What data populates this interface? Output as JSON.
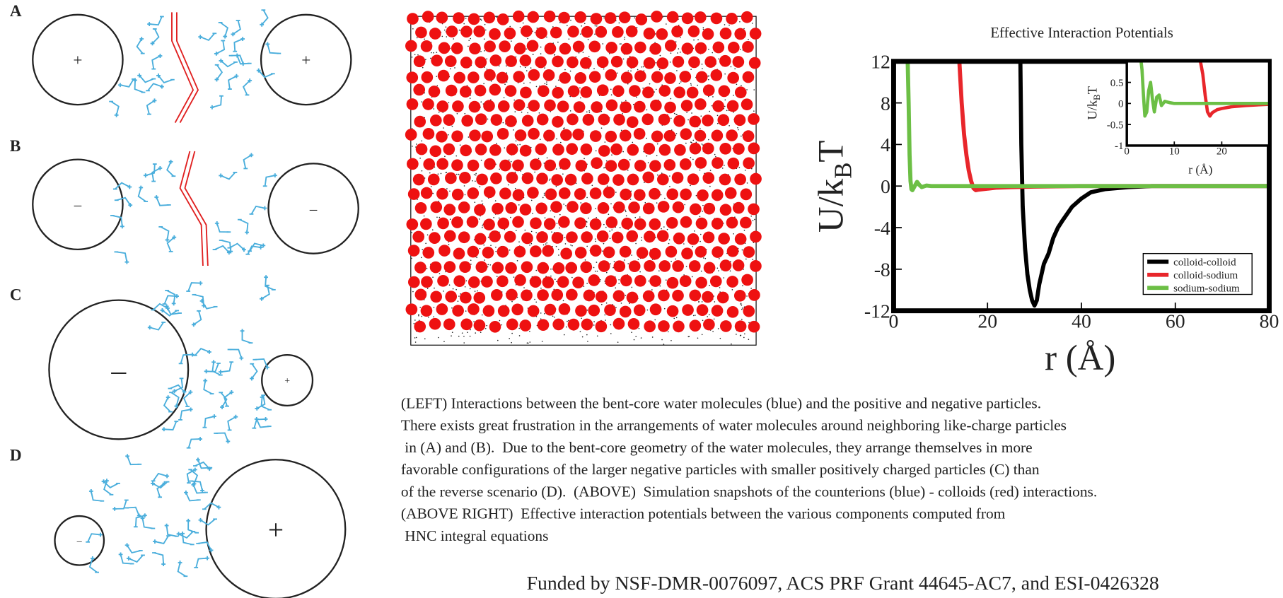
{
  "panels": [
    {
      "label": "A",
      "charges": [
        "+",
        "+"
      ]
    },
    {
      "label": "B",
      "charges": [
        "–",
        "–"
      ]
    },
    {
      "label": "C",
      "charges": [
        "–",
        "+"
      ]
    },
    {
      "label": "D",
      "charges": [
        "–",
        "+"
      ]
    }
  ],
  "chart_data": [
    {
      "type": "line",
      "title": "Effective Interaction Potentials",
      "x_label": "r (Å)",
      "y_label": [
        "U/k",
        "B",
        "T"
      ],
      "xlim": [
        0,
        80
      ],
      "ylim": [
        -12,
        12
      ],
      "xticks": [
        0,
        20,
        40,
        60,
        80
      ],
      "yticks": [
        -12,
        -8,
        -4,
        0,
        4,
        8,
        12
      ],
      "legend": "lower right",
      "series": [
        {
          "name": "colloid-colloid",
          "color": "#000000",
          "x": [
            27,
            27.2,
            27.5,
            28,
            28.5,
            29,
            29.5,
            30,
            30.5,
            31,
            32,
            33,
            34,
            35,
            36,
            38,
            40,
            42,
            45,
            50,
            55,
            60,
            70,
            80
          ],
          "values": [
            12,
            4,
            -2,
            -6,
            -8.5,
            -10,
            -11,
            -11.5,
            -11,
            -9.5,
            -7.5,
            -6.5,
            -5,
            -4,
            -3.3,
            -2,
            -1.2,
            -0.6,
            -0.3,
            -0.1,
            0,
            0,
            0,
            0
          ]
        },
        {
          "name": "colloid-sodium",
          "color": "#e8262b",
          "x": [
            14,
            14.5,
            15,
            15.5,
            16,
            16.5,
            17,
            17.5,
            18,
            19,
            20,
            22,
            25,
            30,
            40,
            60,
            80
          ],
          "values": [
            12,
            8,
            5,
            3,
            1.5,
            0.5,
            -0.2,
            -0.4,
            -0.35,
            -0.3,
            -0.25,
            -0.15,
            -0.1,
            -0.05,
            0,
            0,
            0
          ]
        },
        {
          "name": "sodium-sodium",
          "color": "#6cbf45",
          "x": [
            3,
            3.2,
            3.4,
            3.6,
            3.8,
            4,
            4.5,
            5,
            5.5,
            6,
            7,
            8,
            10,
            20,
            40,
            60,
            80
          ],
          "values": [
            12,
            8,
            3,
            0.5,
            -0.3,
            -0.4,
            0,
            0.4,
            0.1,
            -0.1,
            0.05,
            0,
            0,
            0,
            0,
            0,
            0
          ]
        }
      ]
    },
    {
      "type": "line",
      "x_label": "r (Å)",
      "y_label": [
        "U/k",
        "B",
        "T"
      ],
      "xlim": [
        0,
        30
      ],
      "ylim": [
        -1,
        1
      ],
      "xticks": [
        0,
        10,
        20
      ],
      "yticks": [
        -1,
        -0.5,
        0,
        0.5
      ],
      "series": [
        {
          "name": "colloid-sodium",
          "color": "#e8262b",
          "x": [
            15.5,
            16,
            16.5,
            17,
            17.5,
            18,
            19,
            20,
            22,
            25,
            28,
            30
          ],
          "values": [
            1,
            0.7,
            0.2,
            -0.2,
            -0.3,
            -0.22,
            -0.15,
            -0.12,
            -0.08,
            -0.05,
            -0.03,
            -0.02
          ]
        },
        {
          "name": "sodium-sodium",
          "color": "#6cbf45",
          "x": [
            3,
            3.2,
            3.5,
            3.8,
            4.2,
            4.6,
            5,
            5.4,
            5.8,
            6.3,
            6.8,
            7.3,
            8,
            9,
            10,
            12,
            15,
            20,
            25,
            30
          ],
          "values": [
            1,
            0.8,
            0.2,
            -0.3,
            -0.2,
            0.3,
            0.5,
            0.1,
            -0.2,
            0.15,
            0.2,
            -0.05,
            0.05,
            0.02,
            0,
            0,
            0,
            0,
            0,
            0
          ]
        }
      ]
    }
  ],
  "caption": [
    "(LEFT) Interactions between the bent-core water molecules (blue) and the positive and negative particles.",
    "There exists great frustration in the arrangements of water molecules around neighboring like-charge particles",
    " in (A) and (B).  Due to the bent-core geometry of the water molecules, they arrange themselves in more",
    "favorable configurations of the larger negative particles with smaller positively charged particles (C) than",
    "of the reverse scenario (D).  (ABOVE)  Simulation snapshots of the counterions (blue) - colloids (red) interactions.",
    "(ABOVE RIGHT)  Effective interaction potentials between the various components computed from",
    " HNC integral equations"
  ],
  "funding": "Funded by NSF-DMR-0076097, ACS PRF Grant 44645-AC7, and ESI-0426328"
}
